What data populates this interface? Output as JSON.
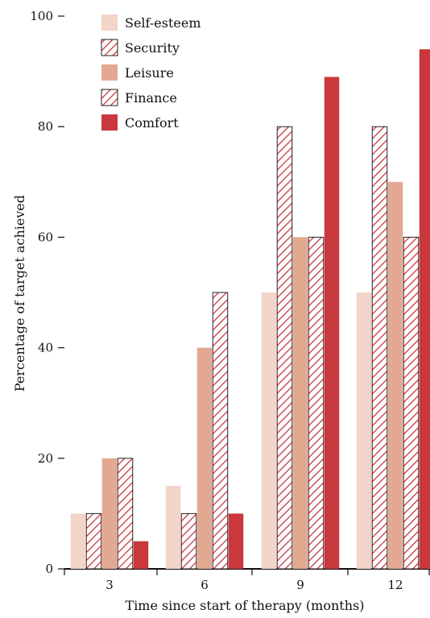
{
  "chart_data": {
    "type": "bar",
    "title": "",
    "xlabel": "Time since start of therapy (months)",
    "ylabel": "Percentage of target achieved",
    "categories": [
      "3",
      "6",
      "9",
      "12"
    ],
    "ylim": [
      0,
      100
    ],
    "yticks": [
      0,
      20,
      40,
      60,
      80,
      100
    ],
    "grid": false,
    "legend_position": "top-left",
    "series": [
      {
        "name": "Self-esteem",
        "style": "solid",
        "color": "#f3d4c8",
        "values": [
          10,
          15,
          50,
          50
        ]
      },
      {
        "name": "Security",
        "style": "hatched",
        "color": "#c8383c",
        "values": [
          10,
          10,
          80,
          80
        ]
      },
      {
        "name": "Leisure",
        "style": "solid",
        "color": "#e3a892",
        "values": [
          20,
          40,
          60,
          70
        ]
      },
      {
        "name": "Finance",
        "style": "hatched",
        "color": "#c8383c",
        "values": [
          20,
          50,
          60,
          60
        ]
      },
      {
        "name": "Comfort",
        "style": "solid",
        "color": "#c8383c",
        "values": [
          5,
          10,
          89,
          94
        ]
      }
    ]
  }
}
